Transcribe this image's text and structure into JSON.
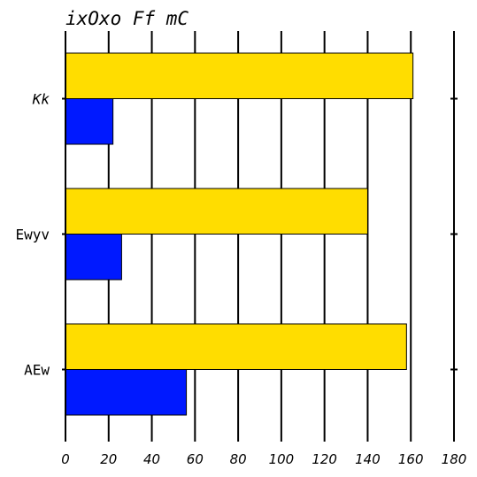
{
  "chart_data": {
    "type": "bar",
    "orientation": "horizontal",
    "title": "ixOxo Ff mC",
    "xlabel": "",
    "ylabel": "",
    "categories": [
      "Kk",
      "Ewyv",
      "AEw"
    ],
    "categories_italic": [
      true,
      false,
      false
    ],
    "series": [
      {
        "values": [
          161,
          140,
          158
        ],
        "color": "#ffdd00"
      },
      {
        "values": [
          22,
          26,
          56
        ],
        "color": "#0019ff"
      }
    ],
    "xlim": [
      0,
      180
    ],
    "x_ticks": [
      0,
      20,
      40,
      60,
      80,
      100,
      120,
      140,
      160,
      180
    ],
    "grid": true,
    "legend": "none"
  }
}
